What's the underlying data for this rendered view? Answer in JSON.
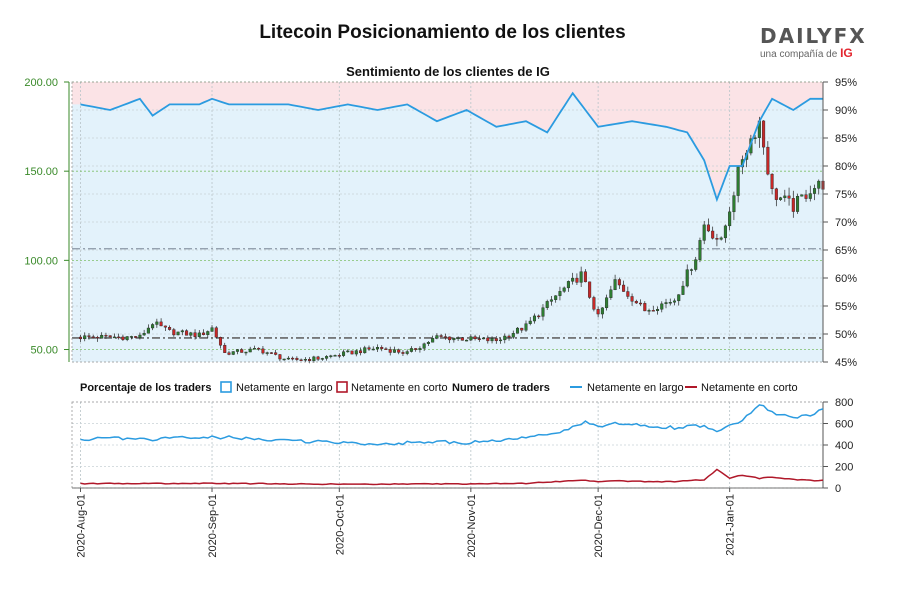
{
  "title": "Litecoin Posicionamiento de los clientes",
  "subtitle": "Sentimiento de los clientes de IG",
  "logo": {
    "wordmark": "DAILYFX",
    "tagline": "una compañía de",
    "tagline_brand": "IG"
  },
  "legend": {
    "pct_title": "Porcentaje de los traders",
    "pct_long": "Netamente en largo",
    "pct_short": "Netamente en corto",
    "num_title": "Numero de traders",
    "num_long": "Netamente en largo",
    "num_short": "Netamente en corto"
  },
  "colors": {
    "long": "#2b9be0",
    "short": "#b0182a",
    "up_candle": "#2e7d32",
    "down_candle": "#c62828",
    "long_area": "#e3f2fb",
    "short_area": "#fbe3e6",
    "price_axis": "#3a8a2a"
  },
  "chart_data": [
    {
      "type": "candlestick",
      "price_axis": {
        "ticks": [
          "50.00",
          "100.00",
          "150.00",
          "200.00"
        ],
        "range": [
          43,
          200
        ]
      },
      "pct_axis": {
        "ticks": [
          "45%",
          "50%",
          "55%",
          "60%",
          "65%",
          "70%",
          "75%",
          "80%",
          "85%",
          "90%",
          "95%"
        ],
        "range": [
          45,
          95
        ]
      },
      "reference_lines": [
        106.5,
        56.5
      ],
      "x_ticks": [
        "2020-Aug-01",
        "2020-Sep-01",
        "2020-Oct-01",
        "2020-Nov-01",
        "2020-Dec-01",
        "2021-Jan-01"
      ],
      "x_tick_days": [
        0,
        31,
        61,
        92,
        122,
        153
      ],
      "x_range": [
        -2,
        175
      ],
      "closes_weekly": [
        [
          0,
          57
        ],
        [
          7,
          57
        ],
        [
          14,
          57
        ],
        [
          17,
          65
        ],
        [
          21,
          60
        ],
        [
          28,
          58
        ],
        [
          31,
          62
        ],
        [
          34,
          48
        ],
        [
          42,
          50
        ],
        [
          49,
          44
        ],
        [
          56,
          45
        ],
        [
          63,
          48
        ],
        [
          70,
          51
        ],
        [
          77,
          48
        ],
        [
          84,
          57
        ],
        [
          91,
          56
        ],
        [
          98,
          55
        ],
        [
          105,
          63
        ],
        [
          112,
          80
        ],
        [
          118,
          92
        ],
        [
          122,
          68
        ],
        [
          126,
          88
        ],
        [
          133,
          72
        ],
        [
          140,
          78
        ],
        [
          145,
          102
        ],
        [
          147,
          120
        ],
        [
          151,
          110
        ],
        [
          156,
          158
        ],
        [
          160,
          178
        ],
        [
          163,
          138
        ],
        [
          168,
          130
        ],
        [
          172,
          140
        ],
        [
          175,
          143
        ]
      ],
      "pct_long_weekly": [
        [
          0,
          91
        ],
        [
          7,
          90
        ],
        [
          14,
          92
        ],
        [
          17,
          89
        ],
        [
          21,
          91
        ],
        [
          28,
          91
        ],
        [
          31,
          92
        ],
        [
          35,
          91
        ],
        [
          42,
          91
        ],
        [
          49,
          91
        ],
        [
          56,
          90
        ],
        [
          63,
          91
        ],
        [
          70,
          90
        ],
        [
          77,
          91
        ],
        [
          84,
          88
        ],
        [
          91,
          90
        ],
        [
          98,
          87
        ],
        [
          105,
          88
        ],
        [
          110,
          86
        ],
        [
          116,
          93
        ],
        [
          122,
          87
        ],
        [
          130,
          88
        ],
        [
          138,
          87
        ],
        [
          143,
          86
        ],
        [
          147,
          81
        ],
        [
          150,
          74
        ],
        [
          153,
          80
        ],
        [
          156,
          80
        ],
        [
          160,
          88
        ],
        [
          163,
          92
        ],
        [
          168,
          90
        ],
        [
          172,
          92
        ],
        [
          175,
          92
        ]
      ]
    },
    {
      "type": "line",
      "y_axis": {
        "ticks": [
          "0",
          "200",
          "400",
          "600",
          "800"
        ],
        "range": [
          0,
          800
        ]
      },
      "series": [
        {
          "name": "Netamente en largo",
          "x": [
            0,
            7,
            14,
            21,
            28,
            35,
            42,
            49,
            56,
            63,
            70,
            77,
            84,
            91,
            98,
            105,
            112,
            119,
            122,
            126,
            133,
            140,
            147,
            150,
            156,
            160,
            163,
            168,
            172,
            175
          ],
          "values": [
            440,
            470,
            450,
            460,
            470,
            470,
            450,
            440,
            430,
            420,
            410,
            420,
            430,
            420,
            440,
            470,
            500,
            620,
            560,
            600,
            580,
            560,
            580,
            530,
            620,
            780,
            700,
            650,
            680,
            730
          ]
        },
        {
          "name": "Netamente en corto",
          "x": [
            0,
            7,
            14,
            21,
            28,
            35,
            42,
            49,
            56,
            63,
            70,
            77,
            84,
            91,
            98,
            105,
            112,
            119,
            122,
            126,
            133,
            140,
            147,
            150,
            153,
            156,
            160,
            163,
            168,
            172,
            175
          ],
          "values": [
            40,
            42,
            40,
            42,
            44,
            42,
            40,
            38,
            36,
            35,
            35,
            36,
            38,
            36,
            40,
            44,
            60,
            70,
            62,
            66,
            60,
            58,
            78,
            170,
            90,
            120,
            90,
            100,
            80,
            70,
            70
          ]
        }
      ]
    }
  ]
}
